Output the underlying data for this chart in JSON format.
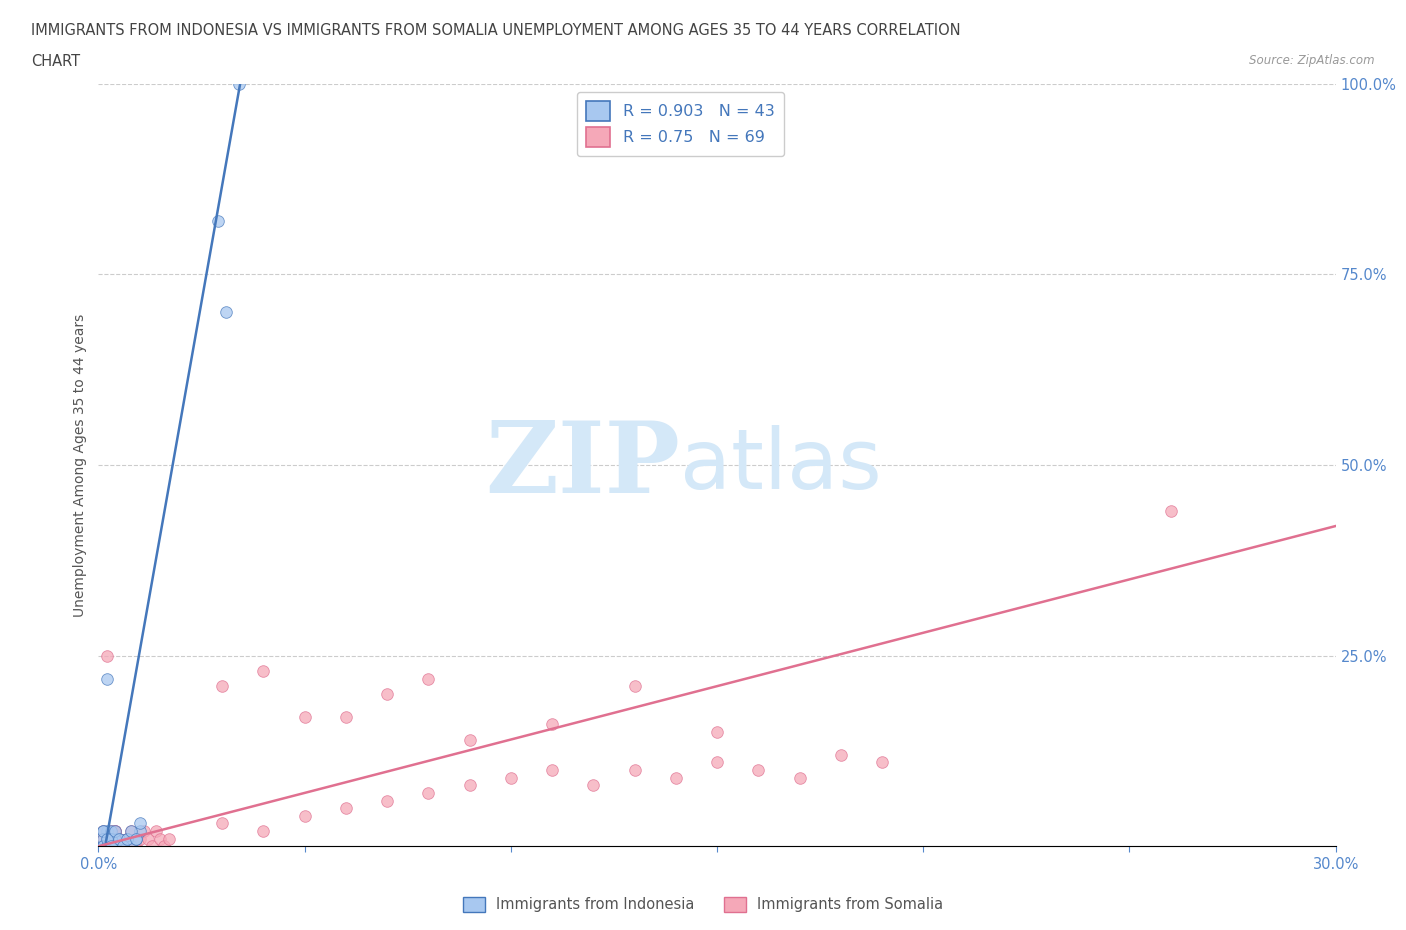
{
  "title_line1": "IMMIGRANTS FROM INDONESIA VS IMMIGRANTS FROM SOMALIA UNEMPLOYMENT AMONG AGES 35 TO 44 YEARS CORRELATION",
  "title_line2": "CHART",
  "source": "Source: ZipAtlas.com",
  "ylabel": "Unemployment Among Ages 35 to 44 years",
  "xlim": [
    0.0,
    0.3
  ],
  "ylim": [
    0.0,
    1.0
  ],
  "indonesia_R": 0.903,
  "indonesia_N": 43,
  "somalia_R": 0.75,
  "somalia_N": 69,
  "indonesia_color": "#a8c8f0",
  "somalia_color": "#f5a8b8",
  "indonesia_line_color": "#4477bb",
  "somalia_line_color": "#e07090",
  "watermark_zip": "ZIP",
  "watermark_atlas": "atlas",
  "watermark_color": "#d4e8f8",
  "indonesia_scatter_x": [
    0.001,
    0.002,
    0.003,
    0.004,
    0.005,
    0.006,
    0.007,
    0.008,
    0.009,
    0.01,
    0.002,
    0.003,
    0.001,
    0.004,
    0.002,
    0.001,
    0.003,
    0.002,
    0.001,
    0.002,
    0.003,
    0.004,
    0.002,
    0.001,
    0.003,
    0.001,
    0.002,
    0.003,
    0.004,
    0.001,
    0.002,
    0.003,
    0.004,
    0.005,
    0.006,
    0.007,
    0.008,
    0.009,
    0.01,
    0.002,
    0.029,
    0.031,
    0.034
  ],
  "indonesia_scatter_y": [
    0.0,
    0.0,
    0.01,
    0.0,
    0.01,
    0.0,
    0.01,
    0.0,
    0.01,
    0.02,
    0.0,
    0.01,
    0.0,
    0.01,
    0.02,
    0.0,
    0.0,
    0.01,
    0.02,
    0.01,
    0.0,
    0.01,
    0.0,
    0.01,
    0.02,
    0.0,
    0.0,
    0.01,
    0.0,
    0.02,
    0.01,
    0.0,
    0.02,
    0.01,
    0.0,
    0.01,
    0.02,
    0.01,
    0.03,
    0.22,
    0.82,
    0.7,
    1.0
  ],
  "indonesia_trendline": [
    [
      0.0,
      -0.05
    ],
    [
      0.036,
      1.05
    ]
  ],
  "somalia_scatter_x": [
    0.001,
    0.002,
    0.003,
    0.004,
    0.005,
    0.006,
    0.007,
    0.008,
    0.009,
    0.01,
    0.011,
    0.012,
    0.013,
    0.014,
    0.015,
    0.016,
    0.017,
    0.001,
    0.002,
    0.003,
    0.004,
    0.005,
    0.006,
    0.007,
    0.001,
    0.002,
    0.003,
    0.004,
    0.005,
    0.001,
    0.002,
    0.003,
    0.001,
    0.002,
    0.003,
    0.004,
    0.005,
    0.006,
    0.007,
    0.008,
    0.03,
    0.04,
    0.05,
    0.06,
    0.07,
    0.08,
    0.09,
    0.1,
    0.11,
    0.12,
    0.13,
    0.14,
    0.15,
    0.16,
    0.17,
    0.18,
    0.19,
    0.03,
    0.05,
    0.07,
    0.09,
    0.11,
    0.13,
    0.15,
    0.04,
    0.06,
    0.08,
    0.26,
    0.002
  ],
  "somalia_scatter_y": [
    0.0,
    0.01,
    0.0,
    0.02,
    0.01,
    0.0,
    0.01,
    0.02,
    0.0,
    0.01,
    0.02,
    0.01,
    0.0,
    0.02,
    0.01,
    0.0,
    0.01,
    0.0,
    0.01,
    0.0,
    0.02,
    0.01,
    0.0,
    0.01,
    0.01,
    0.0,
    0.02,
    0.01,
    0.0,
    0.0,
    0.01,
    0.0,
    0.02,
    0.01,
    0.0,
    0.02,
    0.01,
    0.0,
    0.01,
    0.0,
    0.03,
    0.02,
    0.04,
    0.05,
    0.06,
    0.07,
    0.08,
    0.09,
    0.1,
    0.08,
    0.1,
    0.09,
    0.11,
    0.1,
    0.09,
    0.12,
    0.11,
    0.21,
    0.17,
    0.2,
    0.14,
    0.16,
    0.21,
    0.15,
    0.23,
    0.17,
    0.22,
    0.44,
    0.25
  ],
  "somalia_trendline": [
    [
      0.0,
      0.0
    ],
    [
      0.3,
      0.42
    ]
  ],
  "background_color": "#ffffff",
  "grid_color": "#cccccc",
  "axis_color": "#cccccc",
  "title_color": "#444444",
  "tick_color": "#5588cc",
  "legend_label_indonesia": "Immigrants from Indonesia",
  "legend_label_somalia": "Immigrants from Somalia"
}
